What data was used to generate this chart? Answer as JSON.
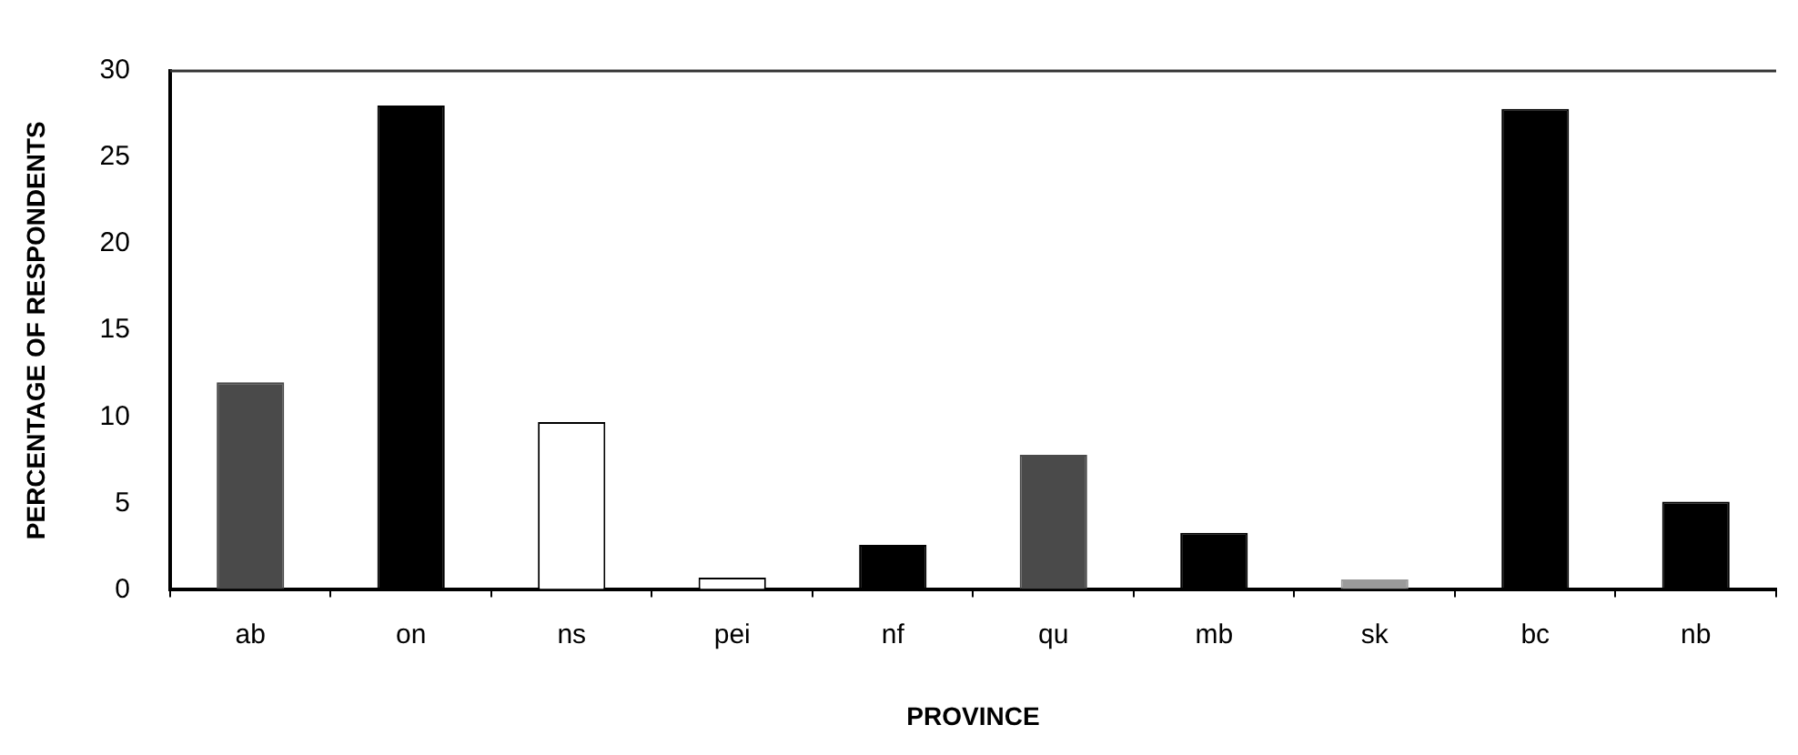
{
  "chart_data": {
    "type": "bar",
    "xlabel": "PROVINCE",
    "ylabel": "PERCENTAGE OF RESPONDENTS",
    "categories": [
      "ab",
      "on",
      "ns",
      "pei",
      "nf",
      "qu",
      "mb",
      "sk",
      "bc",
      "nb"
    ],
    "values": [
      12,
      28,
      9.7,
      0.7,
      2.6,
      7.8,
      3.3,
      0.6,
      27.8,
      5.1
    ],
    "colors": [
      "#4a4a4a",
      "#000000",
      "#ffffff",
      "#ffffff",
      "#000000",
      "#4a4a4a",
      "#000000",
      "#9a9a9a",
      "#000000",
      "#000000"
    ],
    "ylim": [
      0,
      30
    ],
    "yticks": [
      0,
      5,
      10,
      15,
      20,
      25,
      30
    ],
    "grid": false,
    "legend": false
  }
}
